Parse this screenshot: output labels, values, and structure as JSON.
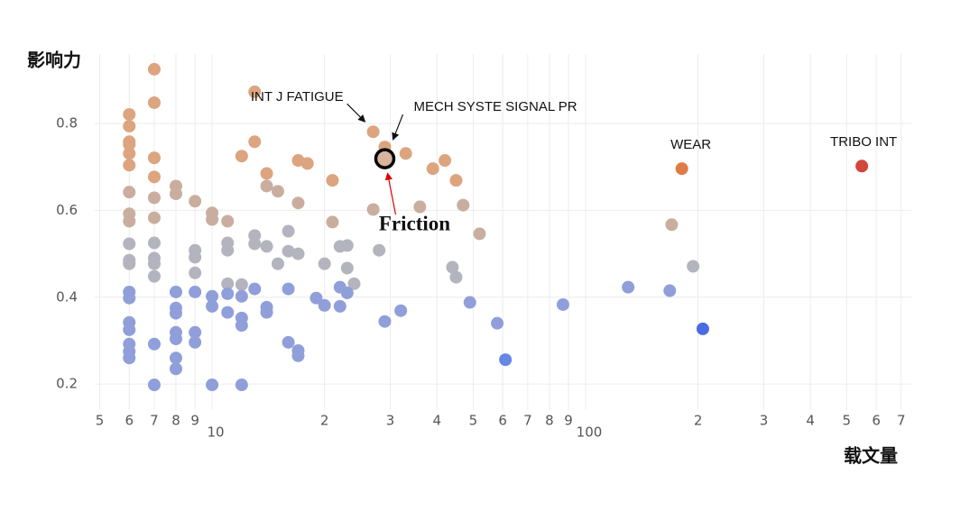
{
  "chart_data": {
    "type": "scatter",
    "x_label": "载文量",
    "y_label": "影响力",
    "x_log": true,
    "grid": true,
    "xlim": [
      4.85,
      745
    ],
    "ylim": [
      0.14,
      0.96
    ],
    "xticks": [
      5,
      6,
      7,
      8,
      9,
      10,
      {
        "value": 20,
        "label": "2"
      },
      {
        "value": 30,
        "label": "3"
      },
      {
        "value": 40,
        "label": "4"
      },
      {
        "value": 50,
        "label": "5"
      },
      {
        "value": 60,
        "label": "6"
      },
      {
        "value": 70,
        "label": "7"
      },
      {
        "value": 80,
        "label": "8"
      },
      {
        "value": 90,
        "label": "9"
      },
      100,
      {
        "value": 200,
        "label": "2"
      },
      {
        "value": 300,
        "label": "3"
      },
      {
        "value": 400,
        "label": "4"
      },
      {
        "value": 500,
        "label": "5"
      },
      {
        "value": 600,
        "label": "6"
      },
      {
        "value": 700,
        "label": "7"
      }
    ],
    "yticks": [
      0.2,
      0.4,
      0.6,
      0.8
    ],
    "series": [
      {
        "color": "#dca47f",
        "x": [
          6,
          6,
          6,
          6,
          6,
          6,
          7,
          7,
          7,
          7,
          12,
          13,
          13,
          14,
          17,
          18,
          21,
          27,
          29,
          33,
          39,
          42,
          45
        ],
        "y": [
          0.821,
          0.794,
          0.758,
          0.752,
          0.731,
          0.704,
          0.925,
          0.848,
          0.721,
          0.677,
          0.725,
          0.873,
          0.758,
          0.685,
          0.715,
          0.708,
          0.669,
          0.781,
          0.746,
          0.731,
          0.696,
          0.715,
          0.669
        ]
      },
      {
        "color": "#c9ae9f",
        "x": [
          6,
          6,
          6,
          7,
          7,
          8,
          8,
          9,
          10,
          10,
          11,
          14,
          15,
          17,
          21,
          27,
          36,
          47,
          52,
          170
        ],
        "y": [
          0.642,
          0.592,
          0.575,
          0.629,
          0.583,
          0.656,
          0.638,
          0.621,
          0.594,
          0.579,
          0.575,
          0.656,
          0.644,
          0.617,
          0.573,
          0.602,
          0.608,
          0.612,
          0.546,
          0.567
        ]
      },
      {
        "color": "#b4b4be",
        "x": [
          6,
          6,
          6,
          7,
          7,
          7,
          7,
          9,
          9,
          9,
          11,
          11,
          11,
          12,
          13,
          13,
          14,
          15,
          16,
          16,
          17,
          20,
          22,
          23,
          23,
          24,
          28,
          44,
          45,
          194
        ],
        "y": [
          0.523,
          0.485,
          0.477,
          0.525,
          0.49,
          0.477,
          0.448,
          0.508,
          0.492,
          0.456,
          0.525,
          0.508,
          0.431,
          0.429,
          0.542,
          0.523,
          0.517,
          0.477,
          0.552,
          0.506,
          0.5,
          0.477,
          0.517,
          0.519,
          0.467,
          0.431,
          0.508,
          0.469,
          0.446,
          0.471
        ]
      },
      {
        "color": "#909fda",
        "x": [
          6,
          6,
          6,
          6,
          6,
          6,
          6,
          7,
          7,
          8,
          8,
          8,
          8,
          8,
          8,
          8,
          9,
          9,
          9,
          10,
          10,
          10,
          11,
          11,
          12,
          12,
          12,
          12,
          13,
          14,
          14,
          16,
          16,
          17,
          17,
          19,
          20,
          22,
          22,
          23,
          29,
          32,
          49,
          58,
          87,
          130,
          168
        ],
        "y": [
          0.412,
          0.398,
          0.342,
          0.325,
          0.292,
          0.275,
          0.26,
          0.292,
          0.198,
          0.412,
          0.375,
          0.363,
          0.319,
          0.304,
          0.26,
          0.235,
          0.412,
          0.319,
          0.296,
          0.402,
          0.379,
          0.198,
          0.408,
          0.365,
          0.402,
          0.352,
          0.335,
          0.198,
          0.419,
          0.377,
          0.365,
          0.419,
          0.296,
          0.277,
          0.265,
          0.398,
          0.381,
          0.423,
          0.379,
          0.41,
          0.344,
          0.369,
          0.388,
          0.34,
          0.383,
          0.423,
          0.415
        ]
      },
      {
        "color": "#6587e6",
        "x": [
          61
        ],
        "y": [
          0.256
        ]
      },
      {
        "color": "#e07b47",
        "x": [
          181
        ],
        "y": [
          0.696
        ]
      },
      {
        "color": "#4a6ce3",
        "x": [
          206
        ],
        "y": [
          0.327
        ]
      },
      {
        "color": "#d2463b",
        "x": [
          549
        ],
        "y": [
          0.702
        ]
      }
    ],
    "highlight": {
      "x": 29,
      "y": 0.719,
      "color": "#d9b39c",
      "ring": "#000000"
    },
    "annotations": [
      {
        "text": "INT J FATIGUE",
        "x": 27,
        "y": 0.781,
        "color": "#111111"
      },
      {
        "text": "MECH SYSTE SIGNAL PR",
        "x": 29,
        "y": 0.746,
        "color": "#111111"
      },
      {
        "text": "WEAR",
        "x": 181,
        "y": 0.696,
        "color": "#111111"
      },
      {
        "text": "TRIBO INT",
        "x": 549,
        "y": 0.702,
        "color": "#111111"
      },
      {
        "text": "Friction",
        "x": 29,
        "y": 0.719,
        "color": "#e00000"
      }
    ]
  }
}
